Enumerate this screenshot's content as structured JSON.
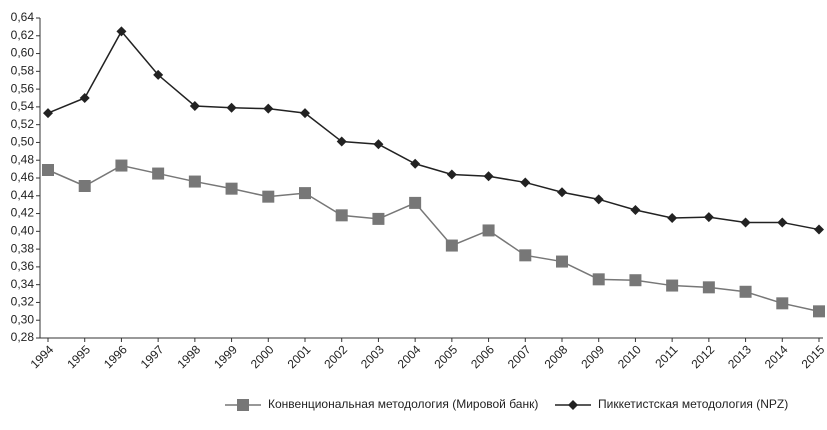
{
  "chart_data": {
    "type": "line",
    "categories": [
      "1994",
      "1995",
      "1996",
      "1997",
      "1998",
      "1999",
      "2000",
      "2001",
      "2002",
      "2003",
      "2004",
      "2005",
      "2006",
      "2007",
      "2008",
      "2009",
      "2010",
      "2011",
      "2012",
      "2013",
      "2014",
      "2015"
    ],
    "series": [
      {
        "name": "Конвенциональная методология (Мировой банк)",
        "color": "#777777",
        "marker": "square",
        "values": [
          0.469,
          0.451,
          0.474,
          0.465,
          0.456,
          0.448,
          0.439,
          0.443,
          0.418,
          0.414,
          0.432,
          0.384,
          0.401,
          0.373,
          0.366,
          0.346,
          0.345,
          0.339,
          0.337,
          0.332,
          0.319,
          0.31
        ]
      },
      {
        "name": "Пиккетистская методология (NPZ)",
        "color": "#222222",
        "marker": "diamond",
        "values": [
          0.533,
          0.55,
          0.625,
          0.576,
          0.541,
          0.539,
          0.538,
          0.533,
          0.501,
          0.498,
          0.476,
          0.464,
          0.462,
          0.455,
          0.444,
          0.436,
          0.424,
          0.415,
          0.416,
          0.41,
          0.41,
          0.402
        ]
      }
    ],
    "ylim": [
      0.28,
      0.64
    ],
    "yticks": [
      {
        "value": 0.28,
        "label": "0,28"
      },
      {
        "value": 0.3,
        "label": "0,30"
      },
      {
        "value": 0.32,
        "label": "0,32"
      },
      {
        "value": 0.34,
        "label": "0,34"
      },
      {
        "value": 0.36,
        "label": "0,36"
      },
      {
        "value": 0.38,
        "label": "0,38"
      },
      {
        "value": 0.4,
        "label": "0,40"
      },
      {
        "value": 0.42,
        "label": "0,42"
      },
      {
        "value": 0.44,
        "label": "0,44"
      },
      {
        "value": 0.46,
        "label": "0,46"
      },
      {
        "value": 0.48,
        "label": "0,48"
      },
      {
        "value": 0.5,
        "label": "0,50"
      },
      {
        "value": 0.52,
        "label": "0,52"
      },
      {
        "value": 0.54,
        "label": "0,54"
      },
      {
        "value": 0.56,
        "label": "0,56"
      },
      {
        "value": 0.58,
        "label": "0,58"
      },
      {
        "value": 0.6,
        "label": "0,60"
      },
      {
        "value": 0.62,
        "label": "0,62"
      },
      {
        "value": 0.64,
        "label": "0,64"
      }
    ],
    "grid": false,
    "legend": "bottom"
  }
}
